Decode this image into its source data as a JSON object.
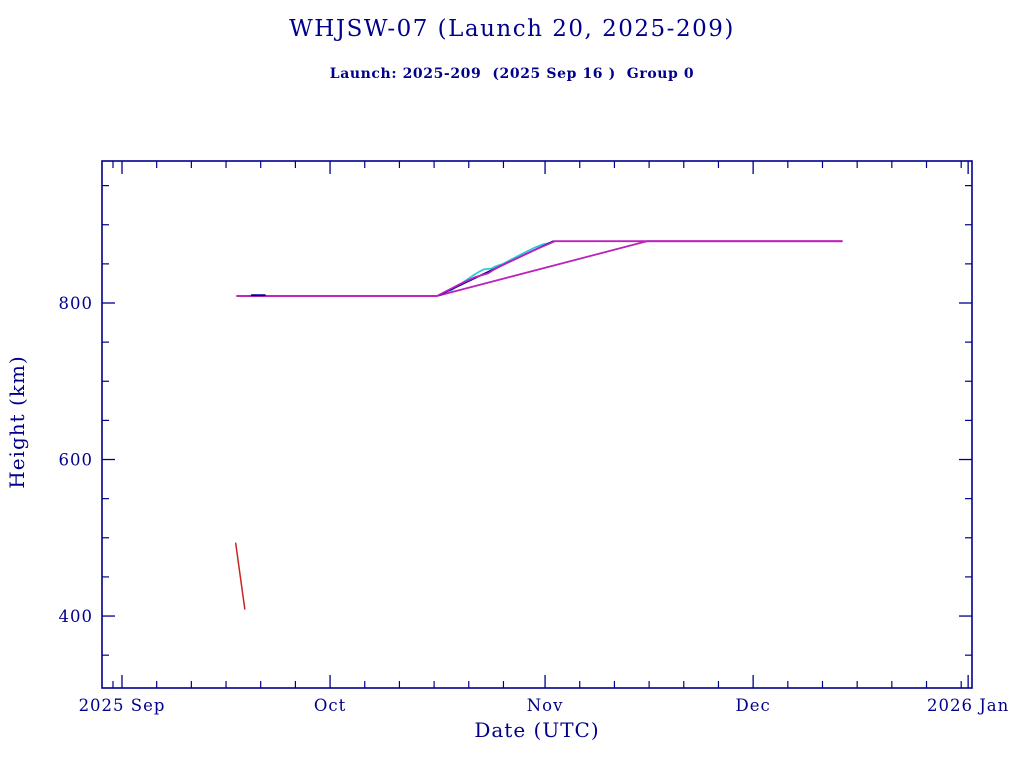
{
  "chart": {
    "title": "WHJSW-07 (Launch 20, 2025-209)",
    "subtitle": "Launch: 2025-209  (2025 Sep 16 )  Group 0",
    "xlabel": "Date (UTC)",
    "ylabel": "Height (km)",
    "axis_color": "#00008B",
    "background": "#ffffff"
  },
  "chart_data": {
    "type": "line",
    "title": "WHJSW-07 (Launch 20, 2025-209)",
    "subtitle": "Launch: 2025-209  (2025 Sep 16 )  Group 0",
    "xlabel": "Date (UTC)",
    "ylabel": "Height (km)",
    "grid": false,
    "legend": "none",
    "x_axis": {
      "unit": "days since 2025 Sep 1 (UTC)",
      "range_days": [
        -2.9,
        122.6
      ],
      "major_ticks": [
        {
          "label": "2025 Sep",
          "t": 0
        },
        {
          "label": "Oct",
          "t": 30
        },
        {
          "label": "Nov",
          "t": 61
        },
        {
          "label": "Dec",
          "t": 91
        },
        {
          "label": "2026 Jan",
          "t": 122
        }
      ],
      "minor_ticks_t": [
        -1.3,
        5,
        10,
        15,
        20,
        25,
        35,
        40,
        45,
        50,
        55,
        66,
        71,
        76,
        81,
        86,
        96,
        101,
        106,
        111,
        116,
        121
      ]
    },
    "y_axis": {
      "unit": "km",
      "range_km": [
        304,
        981
      ],
      "major_ticks": [
        {
          "label": "400",
          "km": 400
        },
        {
          "label": "600",
          "km": 600
        },
        {
          "label": "800",
          "km": 800
        }
      ],
      "minor_ticks_km": [
        350,
        450,
        500,
        550,
        650,
        700,
        750,
        850,
        900,
        950
      ]
    },
    "series": [
      {
        "name": "slow-orbit-raise-magenta",
        "color": "#BB22BB",
        "width": 1.8,
        "points": [
          [
            16.6,
            809
          ],
          [
            45.4,
            809
          ],
          [
            75.7,
            879
          ],
          [
            103.8,
            879
          ]
        ]
      },
      {
        "name": "orbit-raise-cyan",
        "color": "#22CCDD",
        "width": 1.7,
        "points": [
          [
            47.3,
            815
          ],
          [
            48.4,
            822
          ],
          [
            49.6,
            829
          ],
          [
            50.6,
            835
          ],
          [
            51.5,
            840
          ],
          [
            52.2,
            843
          ],
          [
            53.2,
            844
          ],
          [
            53.9,
            847
          ],
          [
            54.9,
            850
          ],
          [
            56.2,
            856
          ],
          [
            57.7,
            863
          ],
          [
            59.3,
            870
          ],
          [
            60.7,
            875
          ],
          [
            61.9,
            877
          ]
        ]
      },
      {
        "name": "orbit-raise-navy",
        "color": "#000090",
        "width": 1.7,
        "points": [
          [
            45.7,
            810
          ],
          [
            50.2,
            829
          ],
          [
            62.2,
            879
          ]
        ]
      },
      {
        "name": "fast-orbit-raise-magenta",
        "color": "#BB22BB",
        "width": 1.8,
        "points": [
          [
            16.6,
            809
          ],
          [
            45.4,
            809
          ],
          [
            48.7,
            824
          ],
          [
            50.9,
            833
          ],
          [
            52.8,
            838
          ],
          [
            53.5,
            842
          ],
          [
            55.2,
            850
          ],
          [
            57.4,
            859
          ],
          [
            59.5,
            868
          ],
          [
            61.4,
            875
          ],
          [
            62.4,
            879
          ],
          [
            103.8,
            879
          ]
        ]
      },
      {
        "name": "initial-orbit-navy-segment",
        "color": "#000090",
        "width": 1.8,
        "points": [
          [
            18.7,
            810
          ],
          [
            20.6,
            810
          ]
        ]
      },
      {
        "name": "decaying-object-red",
        "color": "#CC2222",
        "width": 1.5,
        "points": [
          [
            16.4,
            493
          ],
          [
            17.7,
            409
          ]
        ]
      }
    ]
  }
}
